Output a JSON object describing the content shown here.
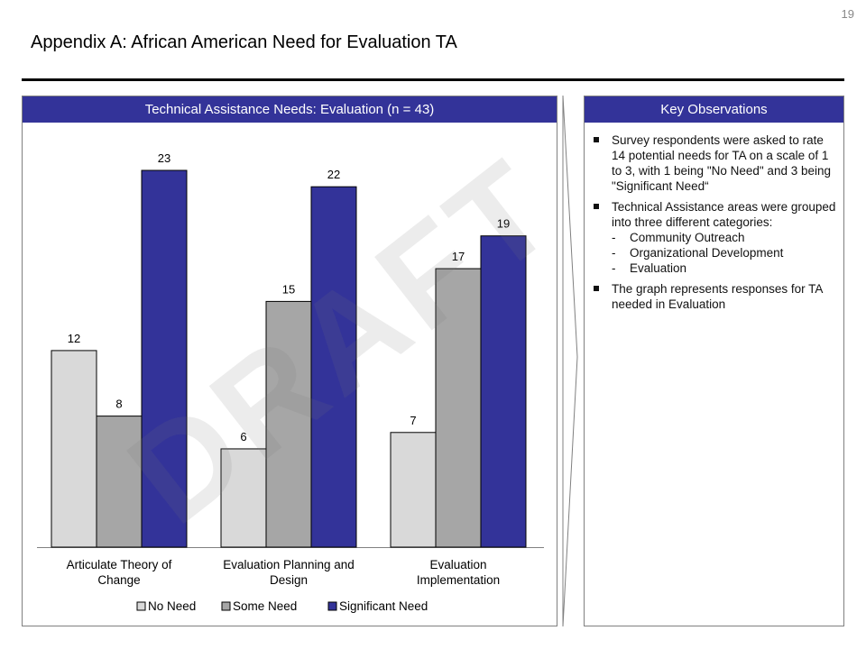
{
  "page_number": "19",
  "title": "Appendix A: African American Need for Evaluation TA",
  "watermark": "DRAFT",
  "colors": {
    "header_bg": "#333399",
    "no_need": "#d9d9d9",
    "some_need": "#a6a6a6",
    "significant_need": "#333399"
  },
  "chart_panel": {
    "header": "Technical Assistance Needs: Evaluation (n = 43)"
  },
  "chart_data": {
    "type": "bar",
    "title": "Technical Assistance Needs: Evaluation (n = 43)",
    "categories": [
      [
        "Articulate Theory of",
        "Change"
      ],
      [
        "Evaluation Planning and",
        "Design"
      ],
      [
        "Evaluation",
        "Implementation"
      ]
    ],
    "series": [
      {
        "name": "No Need",
        "values": [
          12,
          6,
          7
        ]
      },
      {
        "name": "Some Need",
        "values": [
          8,
          15,
          17
        ]
      },
      {
        "name": "Significant Need",
        "values": [
          23,
          22,
          19
        ]
      }
    ],
    "data_labels": true,
    "ylim": [
      0,
      23
    ],
    "grid": false,
    "legend": "bottom"
  },
  "observations": {
    "header": "Key Observations",
    "items": [
      {
        "text": "Survey respondents were asked to rate 14 potential needs for TA on a scale of 1 to 3, with 1 being \"No Need\" and 3 being \"Significant Need“",
        "sub": []
      },
      {
        "text": "Technical Assistance areas were grouped into three different categories:",
        "sub": [
          "Community Outreach",
          "Organizational Development",
          "Evaluation"
        ]
      },
      {
        "text": "The graph represents responses for TA needed in Evaluation",
        "sub": []
      }
    ]
  }
}
